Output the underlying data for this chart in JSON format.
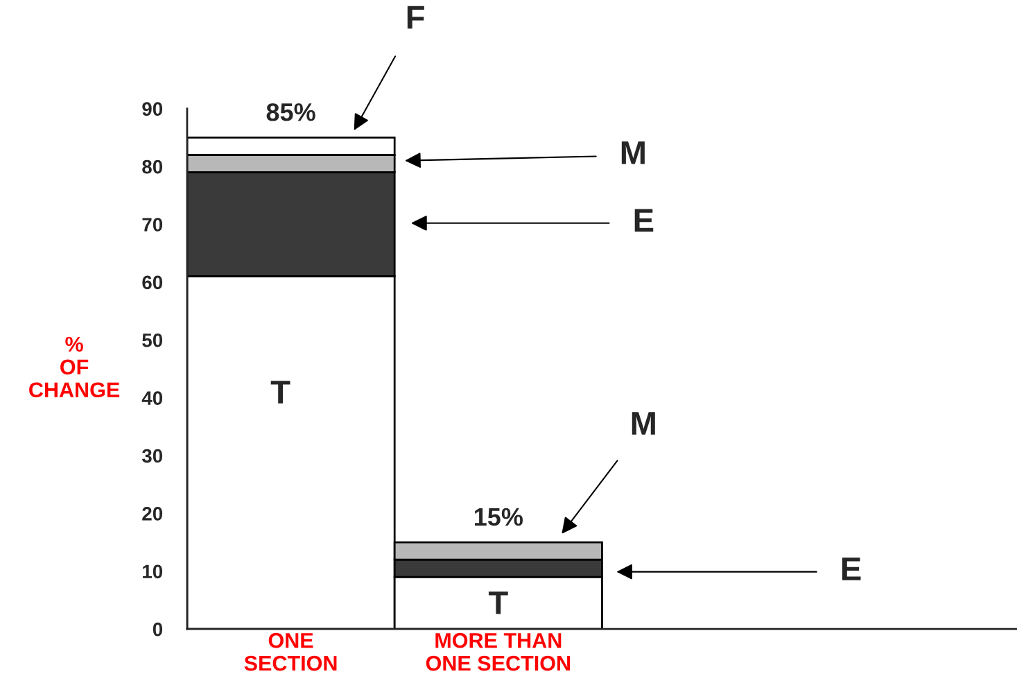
{
  "chart_data": {
    "type": "bar",
    "stacked": true,
    "categories": [
      "ONE\nSECTION",
      "MORE THAN\nONE SECTION"
    ],
    "ylabel": "%\nOF\nCHANGE",
    "series": [
      {
        "color": "#ffffff",
        "values": [
          61,
          9
        ]
      },
      {
        "color": "#3a3a3a",
        "values": [
          18,
          3
        ]
      },
      {
        "color": "#b8b8b8",
        "values": [
          3,
          3
        ]
      },
      {
        "color": "#ffffff",
        "values": [
          3,
          null
        ]
      }
    ],
    "totals": [
      "85%",
      "15%"
    ],
    "ylim": [
      0,
      90
    ],
    "yticks": [
      0,
      10,
      20,
      30,
      40,
      50,
      60,
      70,
      80,
      90
    ],
    "annotations": [
      "F",
      "M",
      "E",
      "T",
      "M",
      "E",
      "T"
    ],
    "grid": false,
    "legend": false
  }
}
